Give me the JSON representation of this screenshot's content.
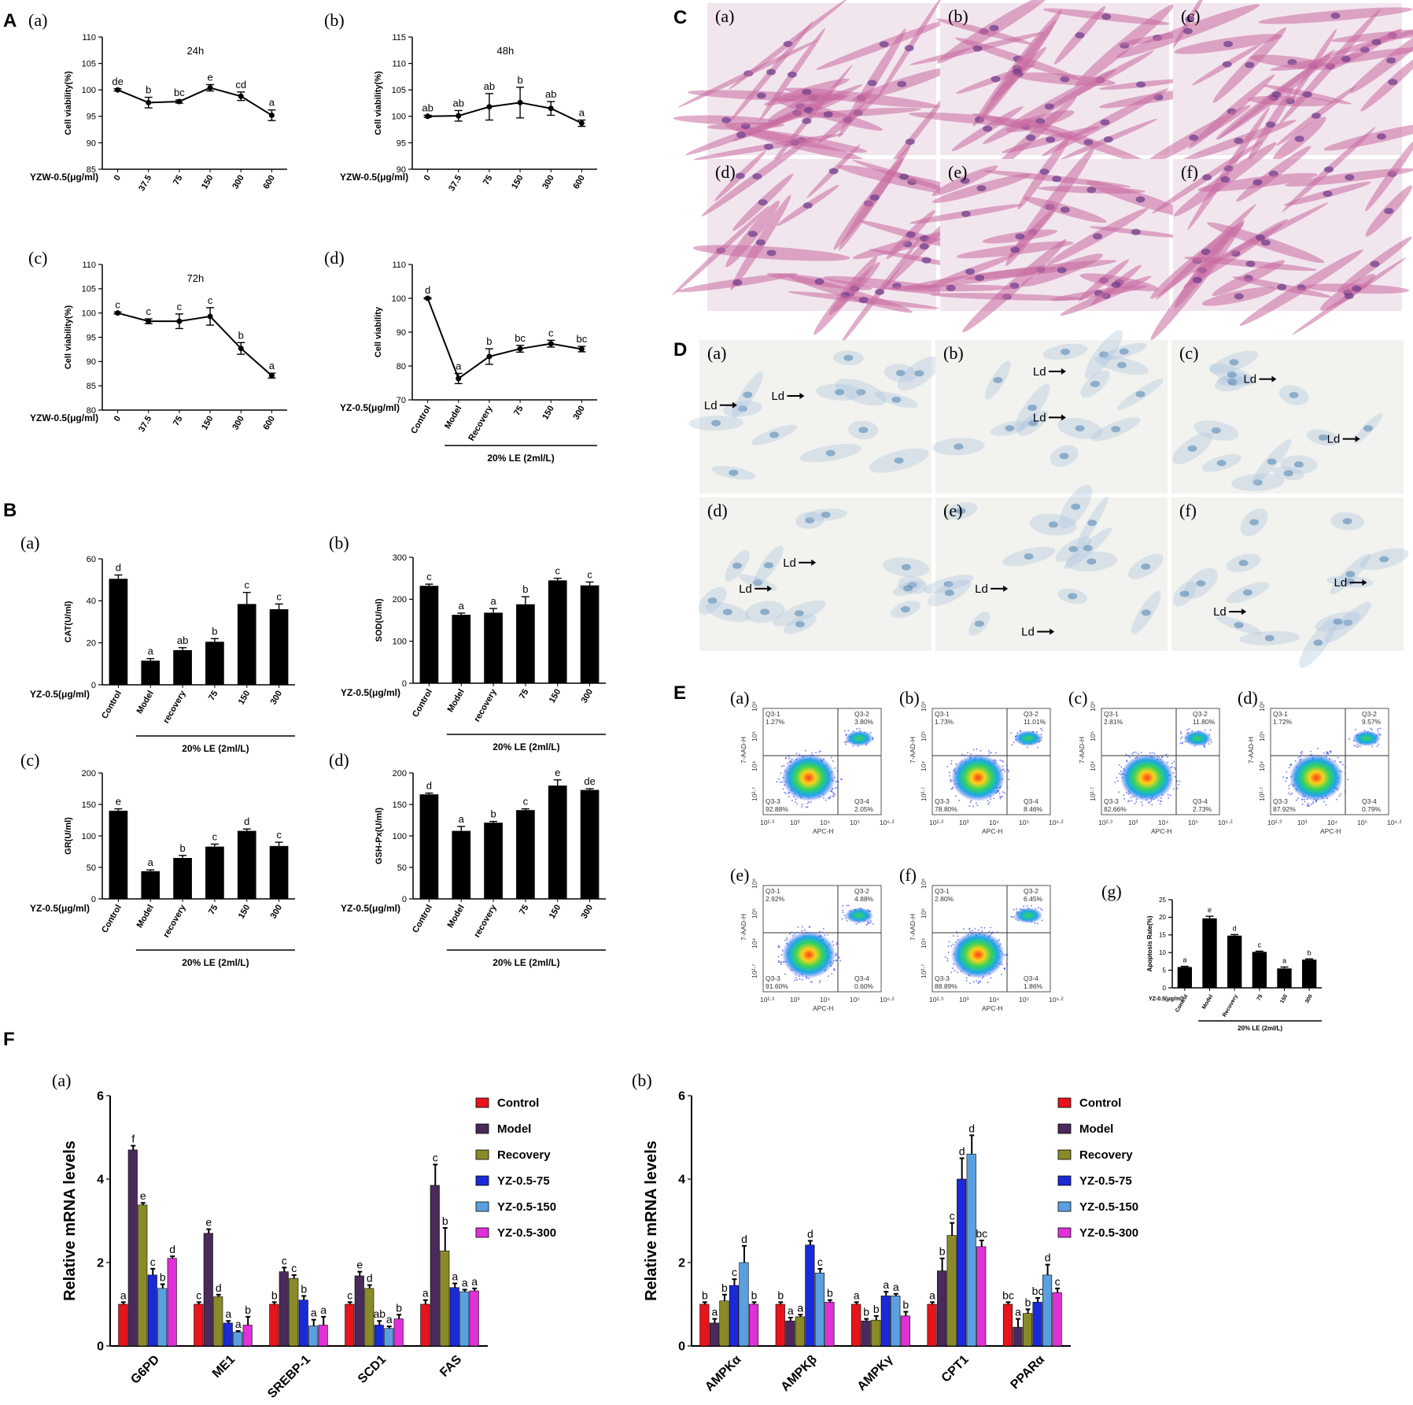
{
  "panel_letters": {
    "A": "A",
    "B": "B",
    "C": "C",
    "D": "D",
    "E": "E",
    "F": "F"
  },
  "micro_sublabels": [
    "(a)",
    "(b)",
    "(c)",
    "(d)",
    "(e)",
    "(f)"
  ],
  "ld_label": "Ld",
  "flow": {
    "panels": [
      {
        "label": "(a)",
        "q1": "Q3-1",
        "q1v": "1.27%",
        "q2": "Q3-2",
        "q2v": "3.80%",
        "q3": "Q3-3",
        "q3v": "92.88%",
        "q4": "Q3-4",
        "q4v": "2.05%"
      },
      {
        "label": "(b)",
        "q1": "Q3-1",
        "q1v": "1.73%",
        "q2": "Q3-2",
        "q2v": "11.01%",
        "q3": "Q3-3",
        "q3v": "78.80%",
        "q4": "Q3-4",
        "q4v": "8.46%"
      },
      {
        "label": "(c)",
        "q1": "Q3-1",
        "q1v": "2.81%",
        "q2": "Q3-2",
        "q2v": "11.80%",
        "q3": "Q3-3",
        "q3v": "82.66%",
        "q4": "Q3-4",
        "q4v": "2.73%"
      },
      {
        "label": "(d)",
        "q1": "Q3-1",
        "q1v": "1.72%",
        "q2": "Q3-2",
        "q2v": "9.57%",
        "q3": "Q3-3",
        "q3v": "87.92%",
        "q4": "Q3-4",
        "q4v": "0.79%"
      },
      {
        "label": "(e)",
        "q1": "Q3-1",
        "q1v": "2.92%",
        "q2": "Q3-2",
        "q2v": "4.88%",
        "q3": "Q3-3",
        "q3v": "91.60%",
        "q4": "Q3-4",
        "q4v": "0.60%"
      },
      {
        "label": "(f)",
        "q1": "Q3-1",
        "q1v": "2.80%",
        "q2": "Q3-2",
        "q2v": "6.45%",
        "q3": "Q3-3",
        "q3v": "88.89%",
        "q4": "Q3-4",
        "q4v": "1.86%"
      }
    ],
    "x_axis": "APC-H",
    "y_axis": "7-AAD-H",
    "x_ticks": [
      "10²·³",
      "10³",
      "10⁴",
      "10⁵",
      "10⁶·²"
    ],
    "y_ticks": [
      "10⁶",
      "10⁵",
      "10⁴",
      "10²·⁷"
    ]
  },
  "chart_data": [
    {
      "id": "A-a",
      "panel": "(a)",
      "type": "line",
      "title": "24h",
      "ylabel": "Cell viability(%)",
      "xprefix": "YZW-0.5(μg/ml)",
      "categories": [
        "0",
        "37.5",
        "75",
        "150",
        "300",
        "600"
      ],
      "values": [
        100,
        97.6,
        97.8,
        100.4,
        98.8,
        95.2
      ],
      "errors": [
        0.2,
        1.0,
        0.3,
        0.6,
        0.8,
        1.0
      ],
      "sig": [
        "de",
        "b",
        "bc",
        "e",
        "cd",
        "a"
      ],
      "ylim": [
        85,
        110
      ],
      "yticks": [
        85,
        90,
        95,
        100,
        105,
        110
      ]
    },
    {
      "id": "A-b",
      "panel": "(b)",
      "type": "line",
      "title": "48h",
      "ylabel": "Cell viability(%)",
      "xprefix": "YZW-0.5(μg/ml)",
      "categories": [
        "0",
        "37.5",
        "75",
        "150",
        "300",
        "600"
      ],
      "values": [
        100,
        100.1,
        101.8,
        102.6,
        101.5,
        98.7
      ],
      "errors": [
        0.2,
        1.0,
        2.5,
        2.9,
        1.3,
        0.6
      ],
      "sig": [
        "ab",
        "ab",
        "ab",
        "b",
        "ab",
        "a"
      ],
      "ylim": [
        90,
        115
      ],
      "yticks": [
        90,
        95,
        100,
        105,
        110,
        115
      ]
    },
    {
      "id": "A-c",
      "panel": "(c)",
      "type": "line",
      "title": "72h",
      "ylabel": "Cell viability(%)",
      "xprefix": "YZW-0.5(μg/ml)",
      "categories": [
        "0",
        "37.5",
        "75",
        "150",
        "300",
        "600"
      ],
      "values": [
        100,
        98.3,
        98.3,
        99.3,
        92.7,
        87.1
      ],
      "errors": [
        0.2,
        0.5,
        1.5,
        1.8,
        1.2,
        0.5
      ],
      "sig": [
        "c",
        "c",
        "c",
        "c",
        "b",
        "a"
      ],
      "ylim": [
        80,
        110
      ],
      "yticks": [
        80,
        85,
        90,
        95,
        100,
        105,
        110
      ]
    },
    {
      "id": "A-d",
      "panel": "(d)",
      "type": "line",
      "title": "",
      "ylabel": "Cell viability",
      "xprefix": "YZ-0.5(μg/ml)",
      "categories": [
        "Control",
        "Model",
        "Recovery",
        "75",
        "150",
        "300"
      ],
      "values": [
        100,
        76.3,
        82.8,
        85.1,
        86.6,
        85.0
      ],
      "errors": [
        0.2,
        1.5,
        2.3,
        1.0,
        1.0,
        0.8
      ],
      "sig": [
        "d",
        "a",
        "b",
        "bc",
        "c",
        "bc"
      ],
      "ylim": [
        70,
        110
      ],
      "yticks": [
        70,
        80,
        90,
        100,
        110
      ],
      "bracket_label": "20% LE (2ml/L)",
      "bracket_from": 1
    },
    {
      "id": "B-a",
      "panel": "(a)",
      "type": "bar",
      "ylabel": "CAT(U/ml)",
      "xprefix": "YZ-0.5(μg/ml)",
      "categories": [
        "Control",
        "Model",
        "recovery",
        "75",
        "150",
        "300"
      ],
      "values": [
        50.5,
        11.5,
        16.5,
        20.5,
        38.5,
        36.0
      ],
      "errors": [
        1.8,
        1.0,
        1.2,
        1.5,
        5.5,
        2.5
      ],
      "sig": [
        "d",
        "a",
        "ab",
        "b",
        "c",
        "c"
      ],
      "ylim": [
        0,
        60
      ],
      "yticks": [
        0,
        20,
        40,
        60
      ],
      "bracket_label": "20% LE (2ml/L)",
      "bracket_from": 1
    },
    {
      "id": "B-b",
      "panel": "(b)",
      "type": "bar",
      "ylabel": "SOD(U/ml)",
      "xprefix": "YZ-0.5(μg/ml)",
      "categories": [
        "Control",
        "Model",
        "recovery",
        "75",
        "150",
        "300"
      ],
      "values": [
        232,
        163,
        168,
        188,
        245,
        233
      ],
      "errors": [
        4,
        4,
        10,
        18,
        5,
        8
      ],
      "sig": [
        "c",
        "a",
        "a",
        "b",
        "c",
        "c"
      ],
      "ylim": [
        0,
        300
      ],
      "yticks": [
        0,
        100,
        200,
        300
      ],
      "bracket_label": "20% LE (2ml/L)",
      "bracket_from": 1
    },
    {
      "id": "B-c",
      "panel": "(c)",
      "type": "bar",
      "ylabel": "GR(U/ml)",
      "xprefix": "YZ-0.5(μg/ml)",
      "categories": [
        "Control",
        "Model",
        "recovery",
        "75",
        "150",
        "300"
      ],
      "values": [
        140,
        44,
        65,
        83,
        108,
        84
      ],
      "errors": [
        3,
        2,
        4,
        4,
        3,
        6
      ],
      "sig": [
        "e",
        "a",
        "b",
        "c",
        "d",
        "c"
      ],
      "ylim": [
        0,
        200
      ],
      "yticks": [
        0,
        50,
        100,
        150,
        200
      ],
      "bracket_label": "20% LE (2ml/L)",
      "bracket_from": 1
    },
    {
      "id": "B-d",
      "panel": "(d)",
      "type": "bar",
      "ylabel": "GSH-Px(U/ml)",
      "xprefix": "YZ-0.5(μg/ml)",
      "categories": [
        "Control",
        "Model",
        "recovery",
        "75",
        "150",
        "300"
      ],
      "values": [
        166,
        108,
        121,
        141,
        180,
        173
      ],
      "errors": [
        2,
        7,
        2,
        2,
        9,
        2
      ],
      "sig": [
        "d",
        "a",
        "b",
        "c",
        "e",
        "de"
      ],
      "ylim": [
        0,
        200
      ],
      "yticks": [
        0,
        50,
        100,
        150,
        200
      ],
      "bracket_label": "20% LE (2ml/L)",
      "bracket_from": 1
    },
    {
      "id": "E-g",
      "panel": "(g)",
      "type": "bar",
      "ylabel": "Apoptosis Rate(%)",
      "xprefix": "YZ-0.5(μg/ml)",
      "categories": [
        "Control",
        "Model",
        "Recovery",
        "75",
        "150",
        "300"
      ],
      "values": [
        5.9,
        19.7,
        14.8,
        10.2,
        5.5,
        8.0
      ],
      "errors": [
        0.2,
        0.6,
        0.3,
        0.2,
        0.4,
        0.2
      ],
      "sig": [
        "a",
        "e",
        "d",
        "c",
        "a",
        "b"
      ],
      "ylim": [
        0,
        25
      ],
      "yticks": [
        0,
        5,
        10,
        15,
        20,
        25
      ],
      "bracket_label": "20% LE (2ml/L)",
      "bracket_from": 1
    },
    {
      "id": "F-a",
      "panel": "(a)",
      "type": "bar",
      "ylabel": "Relative mRNA levels",
      "categories": [
        "G6PD",
        "ME1",
        "SREBP-1",
        "SCD1",
        "FAS"
      ],
      "ylim": [
        0,
        6
      ],
      "yticks": [
        0,
        2,
        4,
        6
      ],
      "series": [
        {
          "name": "Control",
          "color": "#e8141b",
          "values": [
            1.0,
            1.0,
            1.0,
            1.0,
            1.0
          ],
          "errors": [
            0.05,
            0.05,
            0.05,
            0.05,
            0.1
          ],
          "sig": [
            "a",
            "c",
            "b",
            "c",
            "a"
          ]
        },
        {
          "name": "Model",
          "color": "#4a2a5a",
          "values": [
            4.7,
            2.7,
            1.78,
            1.68,
            3.85
          ],
          "errors": [
            0.1,
            0.1,
            0.1,
            0.1,
            0.5
          ],
          "sig": [
            "f",
            "e",
            "c",
            "e",
            "c"
          ]
        },
        {
          "name": "Recovery",
          "color": "#8a8a28",
          "values": [
            3.38,
            1.18,
            1.62,
            1.38,
            2.28
          ],
          "errors": [
            0.05,
            0.05,
            0.08,
            0.08,
            0.55
          ],
          "sig": [
            "e",
            "d",
            "c",
            "d",
            "b"
          ]
        },
        {
          "name": "YZ-0.5-75",
          "color": "#1a2ad8",
          "values": [
            1.7,
            0.55,
            1.1,
            0.5,
            1.4
          ],
          "errors": [
            0.15,
            0.05,
            0.1,
            0.1,
            0.1
          ],
          "sig": [
            "c",
            "a",
            "b",
            "ab",
            "a"
          ]
        },
        {
          "name": "YZ-0.5-150",
          "color": "#5aa0e0",
          "values": [
            1.38,
            0.33,
            0.48,
            0.42,
            1.3
          ],
          "errors": [
            0.1,
            0.03,
            0.15,
            0.05,
            0.05
          ],
          "sig": [
            "b",
            "a",
            "a",
            "a",
            "a"
          ]
        },
        {
          "name": "YZ-0.5-300",
          "color": "#e030d8",
          "values": [
            2.1,
            0.5,
            0.5,
            0.65,
            1.32
          ],
          "errors": [
            0.05,
            0.2,
            0.2,
            0.1,
            0.06
          ],
          "sig": [
            "d",
            "b",
            "a",
            "b",
            "a"
          ]
        }
      ]
    },
    {
      "id": "F-b",
      "panel": "(b)",
      "type": "bar",
      "ylabel": "Relative mRNA levels",
      "categories": [
        "AMPKα",
        "AMPKβ",
        "AMPKγ",
        "CPT1",
        "PPARα"
      ],
      "ylim": [
        0,
        6
      ],
      "yticks": [
        0,
        2,
        4,
        6
      ],
      "series": [
        {
          "name": "Control",
          "color": "#e8141b",
          "values": [
            1.0,
            1.0,
            1.0,
            1.0,
            1.0
          ],
          "errors": [
            0.05,
            0.05,
            0.05,
            0.05,
            0.05
          ],
          "sig": [
            "b",
            "b",
            "a",
            "a",
            "bc"
          ]
        },
        {
          "name": "Model",
          "color": "#4a2a5a",
          "values": [
            0.55,
            0.6,
            0.6,
            1.8,
            0.45
          ],
          "errors": [
            0.1,
            0.08,
            0.05,
            0.3,
            0.2
          ],
          "sig": [
            "a",
            "a",
            "b",
            "b",
            "a"
          ]
        },
        {
          "name": "Recovery",
          "color": "#8a8a28",
          "values": [
            1.08,
            0.7,
            0.62,
            2.65,
            0.78
          ],
          "errors": [
            0.15,
            0.05,
            0.1,
            0.3,
            0.1
          ],
          "sig": [
            "b",
            "a",
            "b",
            "c",
            "b"
          ]
        },
        {
          "name": "YZ-0.5-75",
          "color": "#1a2ad8",
          "values": [
            1.45,
            2.42,
            1.2,
            4.0,
            1.05
          ],
          "errors": [
            0.15,
            0.1,
            0.1,
            0.5,
            0.1
          ],
          "sig": [
            "c",
            "d",
            "a",
            "d",
            "bc"
          ]
        },
        {
          "name": "YZ-0.5-150",
          "color": "#5aa0e0",
          "values": [
            2.0,
            1.75,
            1.2,
            4.6,
            1.7
          ],
          "errors": [
            0.4,
            0.1,
            0.05,
            0.45,
            0.25
          ],
          "sig": [
            "d",
            "c",
            "a",
            "d",
            "d"
          ]
        },
        {
          "name": "YZ-0.5-300",
          "color": "#e030d8",
          "values": [
            1.0,
            1.05,
            0.72,
            2.38,
            1.28
          ],
          "errors": [
            0.05,
            0.05,
            0.1,
            0.15,
            0.1
          ],
          "sig": [
            "b",
            "b",
            "b",
            "bc",
            "c"
          ]
        }
      ]
    }
  ]
}
